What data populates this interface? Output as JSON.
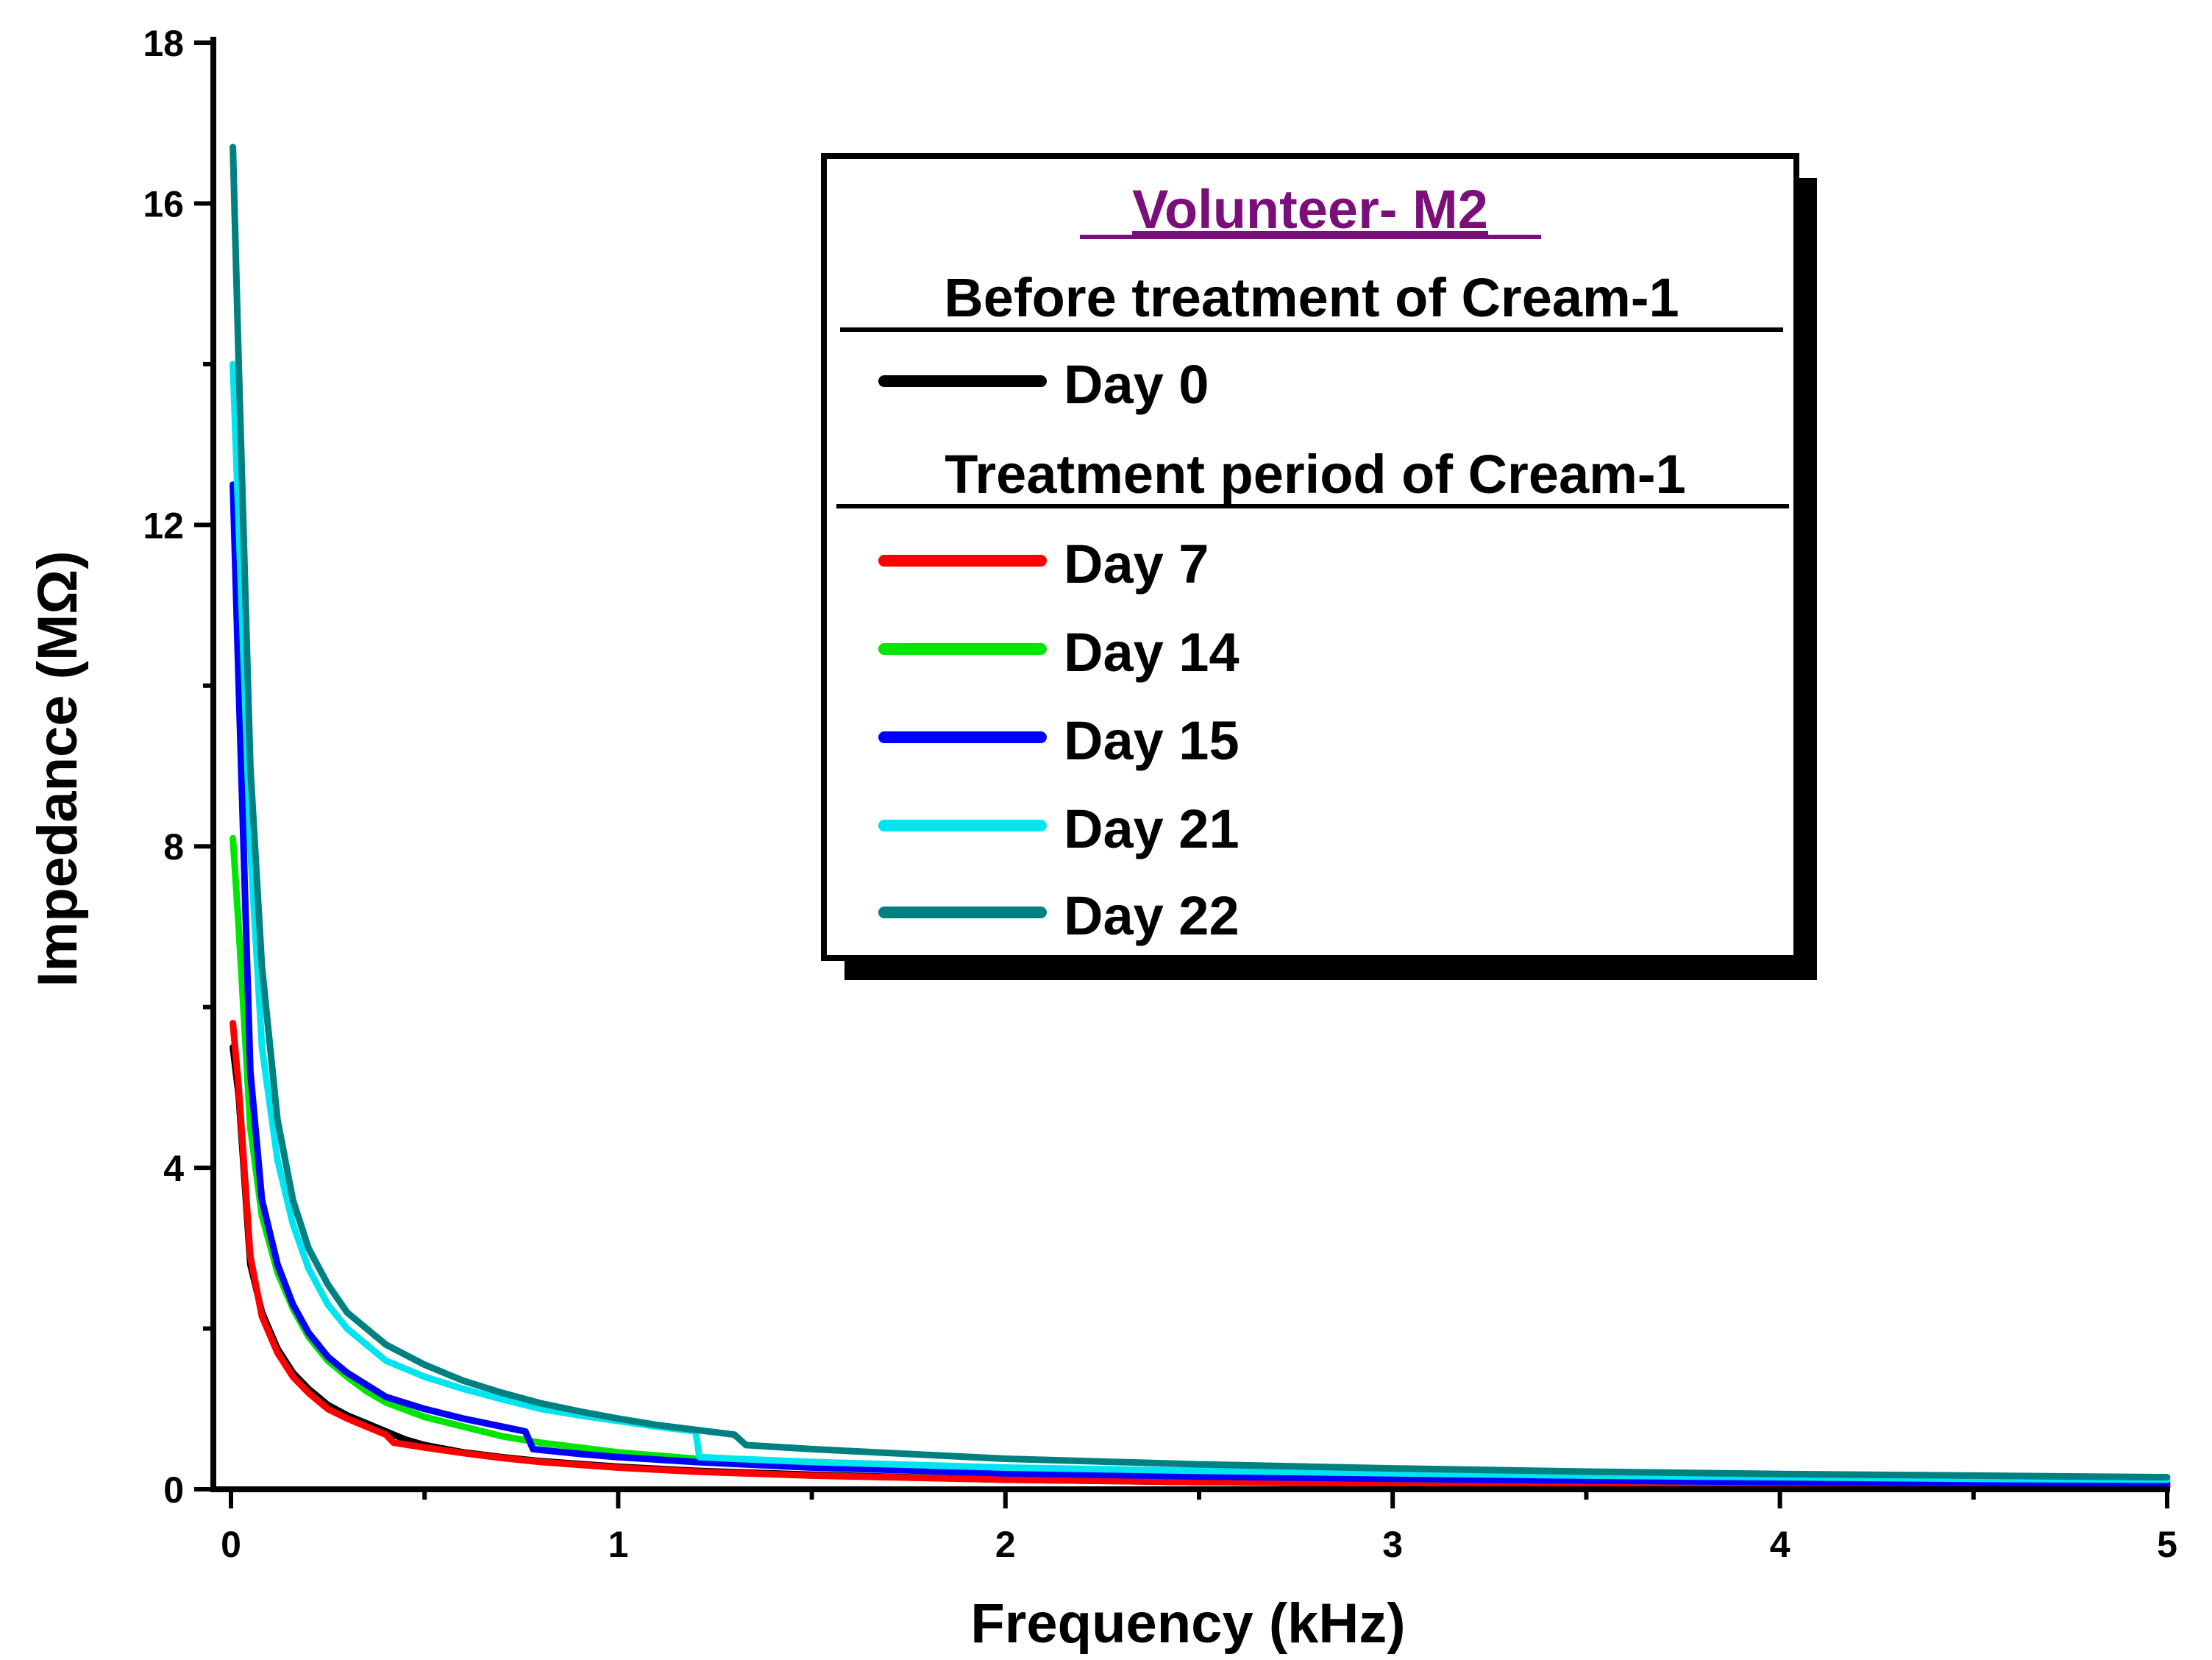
{
  "chart_data": {
    "type": "line",
    "title": "",
    "xlabel": "Frequency (kHz)",
    "ylabel": "Impedance (MΩ)",
    "xlim": [
      0,
      5
    ],
    "ylim": [
      0,
      18
    ],
    "xticks": [
      "0",
      "1",
      "2",
      "3",
      "4",
      "5"
    ],
    "yticks": [
      "0",
      "4",
      "8",
      "12",
      "16",
      "18"
    ],
    "grid": false,
    "legend_position": "top-right",
    "legend": {
      "title": "Volunteer- M2",
      "title_color": "#7a0f7a",
      "group_before": "Before treatment of Cream-1",
      "group_treatment": "Treatment period of Cream-1"
    },
    "series": [
      {
        "name": "Day 0",
        "color": "#000000",
        "points": [
          [
            0.005,
            5.5
          ],
          [
            0.02,
            4.9
          ],
          [
            0.05,
            2.8
          ],
          [
            0.08,
            2.2
          ],
          [
            0.12,
            1.75
          ],
          [
            0.16,
            1.45
          ],
          [
            0.2,
            1.25
          ],
          [
            0.25,
            1.05
          ],
          [
            0.3,
            0.92
          ],
          [
            0.35,
            0.82
          ],
          [
            0.4,
            0.72
          ],
          [
            0.45,
            0.62
          ],
          [
            0.5,
            0.55
          ],
          [
            0.6,
            0.46
          ],
          [
            0.7,
            0.4
          ],
          [
            0.8,
            0.35
          ],
          [
            1.0,
            0.28
          ],
          [
            1.2,
            0.23
          ],
          [
            1.5,
            0.18
          ],
          [
            2.0,
            0.12
          ],
          [
            2.5,
            0.09
          ],
          [
            3.0,
            0.07
          ],
          [
            3.5,
            0.055
          ],
          [
            4.0,
            0.045
          ],
          [
            4.5,
            0.04
          ],
          [
            5.0,
            0.035
          ]
        ]
      },
      {
        "name": "Day 7",
        "color": "#ff0000",
        "points": [
          [
            0.005,
            5.8
          ],
          [
            0.02,
            5.0
          ],
          [
            0.05,
            2.9
          ],
          [
            0.08,
            2.15
          ],
          [
            0.12,
            1.7
          ],
          [
            0.16,
            1.4
          ],
          [
            0.2,
            1.2
          ],
          [
            0.25,
            1.0
          ],
          [
            0.3,
            0.88
          ],
          [
            0.35,
            0.78
          ],
          [
            0.4,
            0.68
          ],
          [
            0.42,
            0.58
          ],
          [
            0.5,
            0.52
          ],
          [
            0.6,
            0.45
          ],
          [
            0.7,
            0.39
          ],
          [
            0.8,
            0.34
          ],
          [
            1.0,
            0.27
          ],
          [
            1.2,
            0.22
          ],
          [
            1.5,
            0.17
          ],
          [
            2.0,
            0.12
          ],
          [
            2.5,
            0.09
          ],
          [
            3.0,
            0.07
          ],
          [
            3.5,
            0.055
          ],
          [
            4.0,
            0.045
          ],
          [
            4.5,
            0.04
          ],
          [
            5.0,
            0.035
          ]
        ]
      },
      {
        "name": "Day 14",
        "color": "#00e600",
        "points": [
          [
            0.005,
            8.1
          ],
          [
            0.02,
            7.0
          ],
          [
            0.05,
            4.5
          ],
          [
            0.08,
            3.4
          ],
          [
            0.12,
            2.7
          ],
          [
            0.16,
            2.25
          ],
          [
            0.2,
            1.9
          ],
          [
            0.25,
            1.6
          ],
          [
            0.3,
            1.4
          ],
          [
            0.35,
            1.22
          ],
          [
            0.4,
            1.08
          ],
          [
            0.5,
            0.9
          ],
          [
            0.6,
            0.78
          ],
          [
            0.7,
            0.66
          ],
          [
            0.8,
            0.58
          ],
          [
            1.0,
            0.46
          ],
          [
            1.2,
            0.38
          ],
          [
            1.5,
            0.3
          ],
          [
            2.0,
            0.22
          ],
          [
            2.5,
            0.17
          ],
          [
            3.0,
            0.13
          ],
          [
            3.5,
            0.11
          ],
          [
            4.0,
            0.09
          ],
          [
            4.5,
            0.08
          ],
          [
            5.0,
            0.07
          ]
        ]
      },
      {
        "name": "Day 15",
        "color": "#0000ff",
        "points": [
          [
            0.005,
            12.5
          ],
          [
            0.02,
            10.0
          ],
          [
            0.05,
            5.2
          ],
          [
            0.08,
            3.6
          ],
          [
            0.12,
            2.8
          ],
          [
            0.16,
            2.3
          ],
          [
            0.2,
            1.95
          ],
          [
            0.25,
            1.65
          ],
          [
            0.3,
            1.45
          ],
          [
            0.35,
            1.3
          ],
          [
            0.4,
            1.15
          ],
          [
            0.5,
            1.0
          ],
          [
            0.6,
            0.88
          ],
          [
            0.7,
            0.78
          ],
          [
            0.76,
            0.72
          ],
          [
            0.78,
            0.5
          ],
          [
            0.9,
            0.44
          ],
          [
            1.0,
            0.4
          ],
          [
            1.2,
            0.34
          ],
          [
            1.5,
            0.27
          ],
          [
            2.0,
            0.2
          ],
          [
            2.5,
            0.16
          ],
          [
            3.0,
            0.13
          ],
          [
            3.5,
            0.11
          ],
          [
            4.0,
            0.09
          ],
          [
            4.5,
            0.08
          ],
          [
            5.0,
            0.07
          ]
        ]
      },
      {
        "name": "Day 21",
        "color": "#00e5f0",
        "points": [
          [
            0.005,
            14.0
          ],
          [
            0.02,
            12.0
          ],
          [
            0.05,
            8.0
          ],
          [
            0.08,
            5.5
          ],
          [
            0.12,
            4.1
          ],
          [
            0.16,
            3.3
          ],
          [
            0.2,
            2.75
          ],
          [
            0.25,
            2.3
          ],
          [
            0.3,
            2.0
          ],
          [
            0.35,
            1.8
          ],
          [
            0.4,
            1.6
          ],
          [
            0.5,
            1.4
          ],
          [
            0.6,
            1.25
          ],
          [
            0.7,
            1.12
          ],
          [
            0.8,
            1.0
          ],
          [
            0.9,
            0.92
          ],
          [
            1.0,
            0.85
          ],
          [
            1.1,
            0.78
          ],
          [
            1.2,
            0.72
          ],
          [
            1.21,
            0.4
          ],
          [
            1.3,
            0.38
          ],
          [
            1.5,
            0.34
          ],
          [
            2.0,
            0.27
          ],
          [
            2.5,
            0.23
          ],
          [
            3.0,
            0.2
          ],
          [
            3.5,
            0.17
          ],
          [
            4.0,
            0.15
          ],
          [
            4.5,
            0.13
          ],
          [
            5.0,
            0.12
          ]
        ]
      },
      {
        "name": "Day 22",
        "color": "#008080",
        "points": [
          [
            0.005,
            16.7
          ],
          [
            0.02,
            14.0
          ],
          [
            0.05,
            9.0
          ],
          [
            0.08,
            6.5
          ],
          [
            0.12,
            4.6
          ],
          [
            0.16,
            3.6
          ],
          [
            0.2,
            3.0
          ],
          [
            0.25,
            2.55
          ],
          [
            0.3,
            2.2
          ],
          [
            0.35,
            2.0
          ],
          [
            0.4,
            1.8
          ],
          [
            0.5,
            1.55
          ],
          [
            0.6,
            1.35
          ],
          [
            0.7,
            1.2
          ],
          [
            0.8,
            1.07
          ],
          [
            0.9,
            0.97
          ],
          [
            1.0,
            0.88
          ],
          [
            1.1,
            0.8
          ],
          [
            1.2,
            0.74
          ],
          [
            1.3,
            0.68
          ],
          [
            1.33,
            0.55
          ],
          [
            1.5,
            0.5
          ],
          [
            2.0,
            0.38
          ],
          [
            2.5,
            0.31
          ],
          [
            3.0,
            0.26
          ],
          [
            3.5,
            0.22
          ],
          [
            4.0,
            0.19
          ],
          [
            4.5,
            0.17
          ],
          [
            5.0,
            0.15
          ]
        ]
      }
    ]
  }
}
